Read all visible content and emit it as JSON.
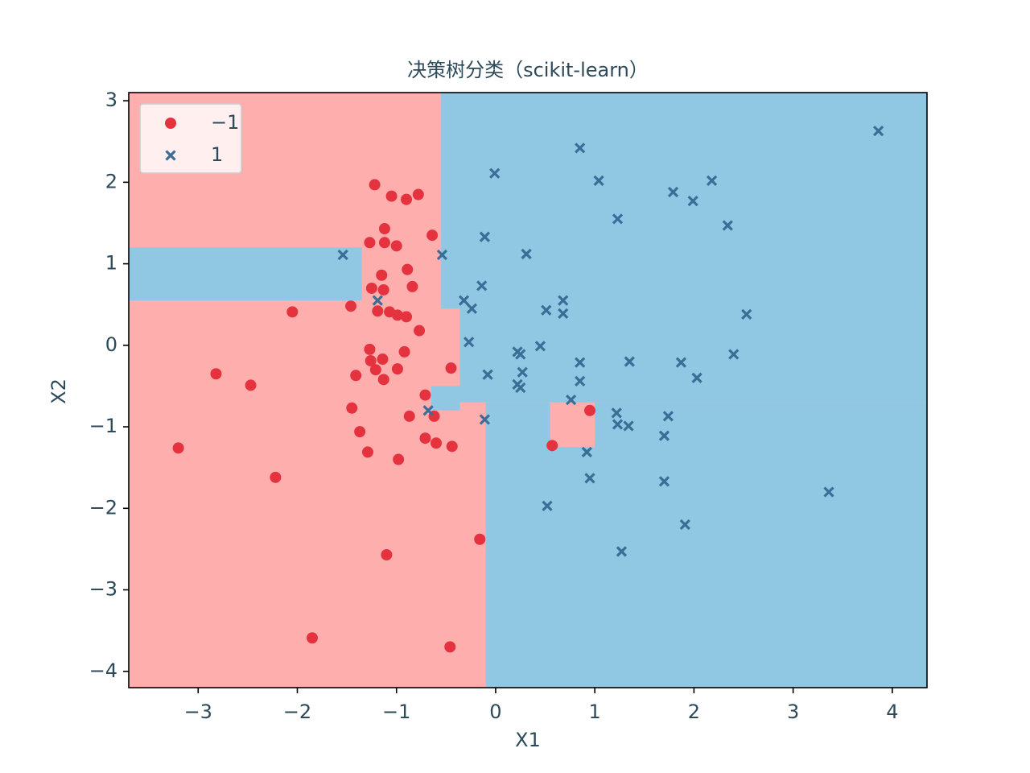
{
  "chart_data": {
    "type": "scatter",
    "title": "决策树分类（scikit-learn）",
    "xlabel": "X1",
    "ylabel": "X2",
    "xlim": [
      -3.7,
      4.35
    ],
    "ylim": [
      -4.2,
      3.1
    ],
    "xticks": [
      {
        "value": -3,
        "label": "−3"
      },
      {
        "value": -2,
        "label": "−2"
      },
      {
        "value": -1,
        "label": "−1"
      },
      0,
      1,
      2,
      3,
      4
    ],
    "yticks": [
      {
        "value": -4,
        "label": "−4"
      },
      {
        "value": -3,
        "label": "−3"
      },
      {
        "value": -2,
        "label": "−2"
      },
      {
        "value": -1,
        "label": "−1"
      },
      0,
      1,
      2,
      3
    ],
    "background_color": "#ffaeae",
    "regions": [
      {
        "x": [
          -0.55,
          4.35
        ],
        "y": [
          0.45,
          3.1
        ],
        "color": "#90c8e4"
      },
      {
        "x": [
          -0.36,
          4.35
        ],
        "y": [
          -0.7,
          0.45
        ],
        "color": "#90c8e4"
      },
      {
        "x": [
          -0.65,
          -0.36
        ],
        "y": [
          -0.8,
          -0.5
        ],
        "color": "#90c8e4"
      },
      {
        "x": [
          -0.1,
          4.35
        ],
        "y": [
          -4.2,
          -0.7
        ],
        "color": "#90c8e4"
      },
      {
        "x": [
          -3.7,
          -1.35
        ],
        "y": [
          0.55,
          1.2
        ],
        "color": "#90c8e4"
      },
      {
        "x": [
          0.55,
          1.0
        ],
        "y": [
          -1.25,
          -0.7
        ],
        "color": "#ffaeae"
      }
    ],
    "legend": "upper left",
    "series": [
      {
        "name": "−1",
        "color": "#e5323f",
        "marker": "o",
        "x": [
          -1.22,
          -1.05,
          -0.9,
          -0.78,
          -1.12,
          -1.27,
          -1.12,
          -1.0,
          -0.64,
          -0.89,
          -1.15,
          -1.25,
          -1.13,
          -0.84,
          -2.05,
          -1.46,
          -1.19,
          -1.07,
          -0.99,
          -0.9,
          -0.77,
          -1.27,
          -1.14,
          -0.92,
          -1.26,
          -1.21,
          -0.99,
          -0.45,
          -1.41,
          -1.13,
          -2.82,
          -2.47,
          -0.71,
          -1.45,
          -0.87,
          -0.62,
          0.95,
          -1.37,
          -0.71,
          -0.6,
          -0.44,
          0.57,
          -1.29,
          -0.98,
          -3.2,
          -2.22,
          -0.16,
          -1.1,
          -1.85,
          -0.46
        ],
        "y": [
          1.97,
          1.83,
          1.79,
          1.85,
          1.43,
          1.26,
          1.26,
          1.22,
          1.35,
          0.93,
          0.86,
          0.7,
          0.68,
          0.72,
          0.41,
          0.48,
          0.42,
          0.41,
          0.37,
          0.35,
          0.18,
          -0.05,
          -0.17,
          -0.08,
          -0.19,
          -0.3,
          -0.29,
          -0.28,
          -0.37,
          -0.42,
          -0.35,
          -0.49,
          -0.61,
          -0.77,
          -0.87,
          -0.87,
          -0.8,
          -1.06,
          -1.14,
          -1.2,
          -1.24,
          -1.23,
          -1.31,
          -1.4,
          -1.26,
          -1.62,
          -2.38,
          -2.57,
          -3.59,
          -3.7
        ]
      },
      {
        "name": "1",
        "color": "#3b6e96",
        "marker": "x",
        "x": [
          3.86,
          0.85,
          -0.01,
          1.04,
          2.18,
          1.79,
          1.99,
          1.23,
          2.34,
          -0.11,
          -1.54,
          -0.54,
          0.31,
          -0.14,
          0.68,
          -0.32,
          -1.19,
          -0.24,
          0.51,
          0.68,
          2.53,
          -0.27,
          0.45,
          0.22,
          0.25,
          2.4,
          1.35,
          0.85,
          1.87,
          -0.08,
          0.27,
          2.03,
          0.85,
          0.22,
          0.25,
          0.76,
          -0.68,
          1.22,
          1.74,
          -0.11,
          1.23,
          1.34,
          1.7,
          0.92,
          0.95,
          1.7,
          3.36,
          0.52,
          1.91,
          1.27
        ],
        "y": [
          2.63,
          2.42,
          2.11,
          2.02,
          2.02,
          1.88,
          1.77,
          1.55,
          1.47,
          1.33,
          1.11,
          1.11,
          1.12,
          0.73,
          0.55,
          0.55,
          0.55,
          0.45,
          0.43,
          0.39,
          0.38,
          0.04,
          -0.01,
          -0.08,
          -0.11,
          -0.11,
          -0.2,
          -0.21,
          -0.21,
          -0.36,
          -0.33,
          -0.4,
          -0.44,
          -0.48,
          -0.52,
          -0.67,
          -0.8,
          -0.83,
          -0.87,
          -0.91,
          -0.97,
          -0.99,
          -1.11,
          -1.31,
          -1.63,
          -1.67,
          -1.8,
          -1.97,
          -2.2,
          -2.53
        ]
      }
    ]
  }
}
